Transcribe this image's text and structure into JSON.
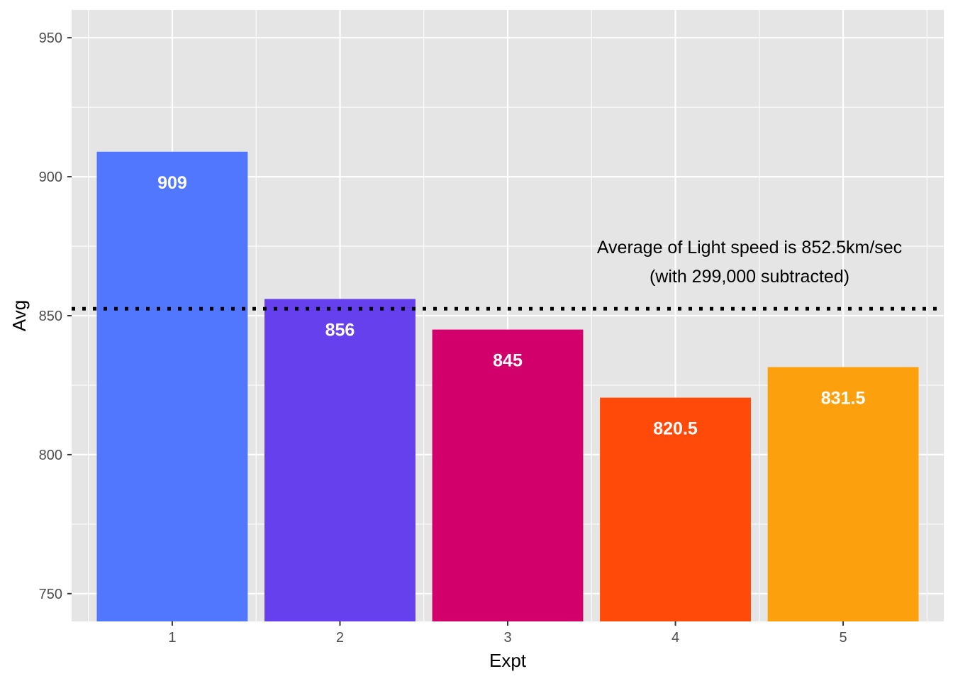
{
  "chart_data": {
    "type": "bar",
    "categories": [
      "1",
      "2",
      "3",
      "4",
      "5"
    ],
    "values": [
      909,
      856,
      845,
      820.5,
      831.5
    ],
    "value_labels": [
      "909",
      "856",
      "845",
      "820.5",
      "831.5"
    ],
    "colors": [
      "#5177ff",
      "#6640ed",
      "#d1006a",
      "#ff4a0a",
      "#fca10d"
    ],
    "xlabel": "Expt",
    "ylabel": "Avg",
    "ylim": [
      740,
      960
    ],
    "yticks": [
      750,
      800,
      850,
      900,
      950
    ],
    "grid": true,
    "reference_line": {
      "value": 852.5,
      "style": "dotted",
      "color": "#000000"
    },
    "annotation": {
      "lines": [
        "Average of Light speed is 852.5km/sec",
        "(with 299,000 subtracted)"
      ]
    },
    "theme": {
      "panel_background": "#e5e5e5",
      "grid_color": "#ffffff",
      "tick_color": "#333333"
    }
  }
}
